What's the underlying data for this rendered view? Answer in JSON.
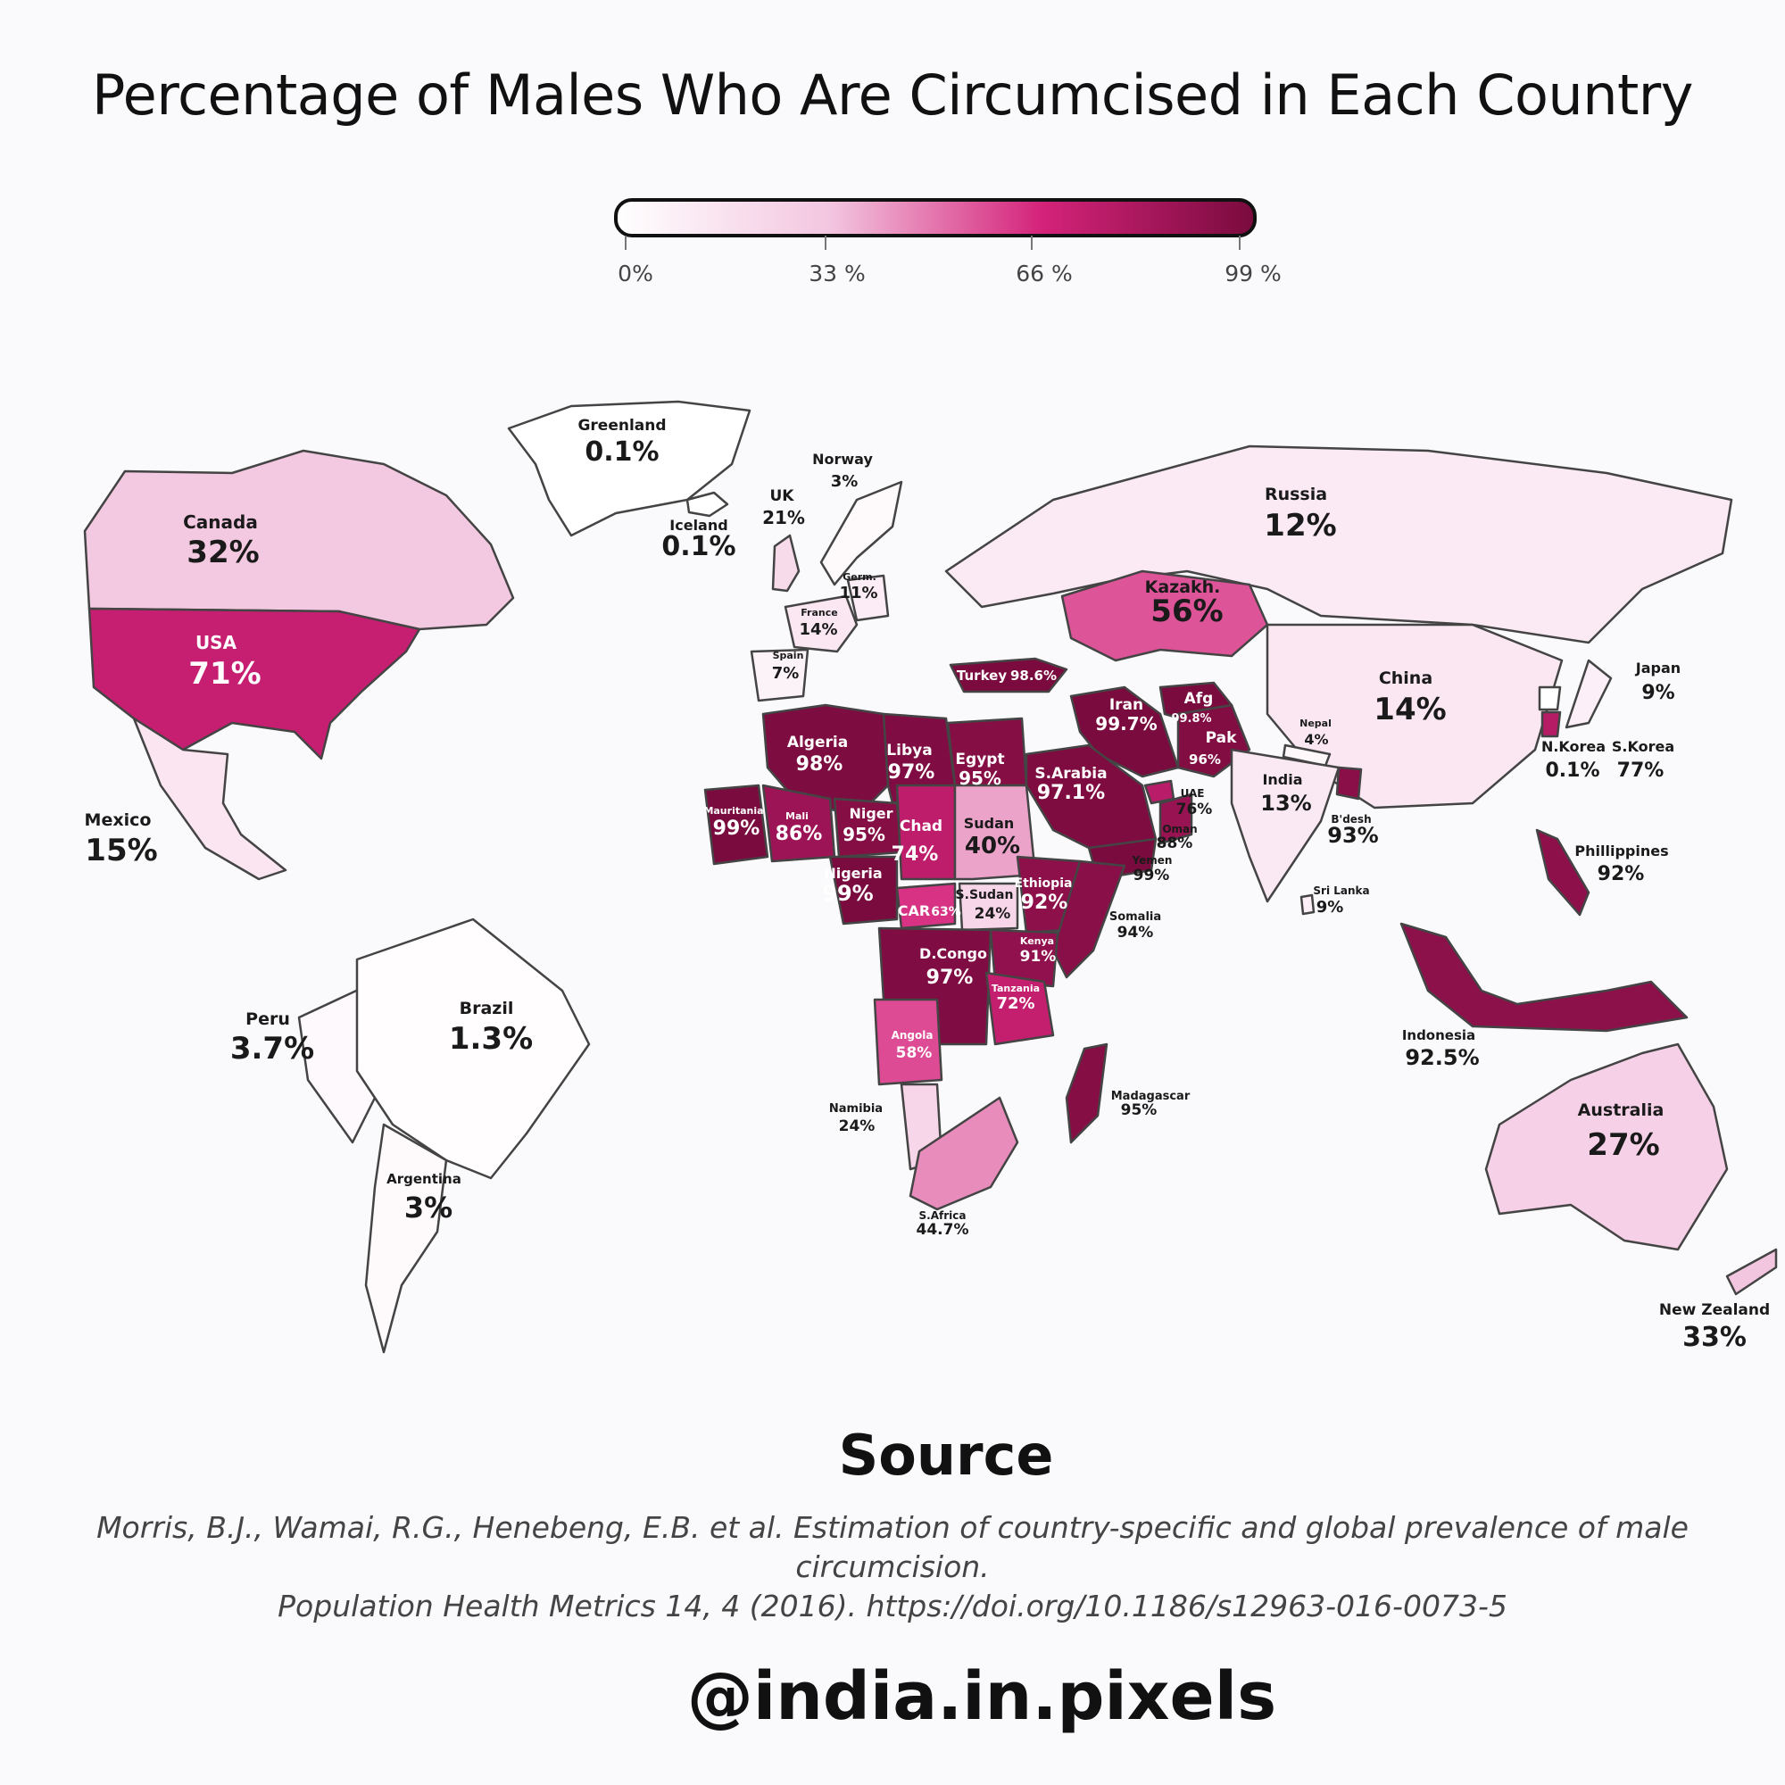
{
  "title": "Percentage of Males Who Are Circumcised in Each Country",
  "legend": {
    "colors": [
      "#ffffff",
      "#f3c6e0",
      "#d4237a",
      "#7a0b3e"
    ],
    "ticks": [
      {
        "value": 0,
        "label": "0%"
      },
      {
        "value": 33,
        "label": "33 %"
      },
      {
        "value": 66,
        "label": "66 %"
      },
      {
        "value": 99,
        "label": "99 %"
      }
    ]
  },
  "chart_data": {
    "type": "choropleth",
    "unit": "%",
    "regions": [
      {
        "name": "Canada",
        "value": 32,
        "label": "32%"
      },
      {
        "name": "USA",
        "value": 71,
        "label": "71%"
      },
      {
        "name": "Mexico",
        "value": 15,
        "label": "15%"
      },
      {
        "name": "Greenland",
        "value": 0.1,
        "label": "0.1%"
      },
      {
        "name": "Iceland",
        "value": 0.1,
        "label": "0.1%"
      },
      {
        "name": "UK",
        "value": 21,
        "label": "21%"
      },
      {
        "name": "Norway",
        "value": 3,
        "label": "3%"
      },
      {
        "name": "Germ.",
        "value": 11,
        "label": "11%"
      },
      {
        "name": "France",
        "value": 14,
        "label": "14%"
      },
      {
        "name": "Spain",
        "value": 7,
        "label": "7%"
      },
      {
        "name": "Russia",
        "value": 12,
        "label": "12%"
      },
      {
        "name": "Kazakh.",
        "value": 56,
        "label": "56%"
      },
      {
        "name": "Turkey",
        "value": 98.6,
        "label": "98.6%"
      },
      {
        "name": "Iran",
        "value": 99.7,
        "label": "99.7%"
      },
      {
        "name": "Afg",
        "value": 99.8,
        "label": "99.8%"
      },
      {
        "name": "Pak",
        "value": 96,
        "label": "96%"
      },
      {
        "name": "China",
        "value": 14,
        "label": "14%"
      },
      {
        "name": "Japan",
        "value": 9,
        "label": "9%"
      },
      {
        "name": "N.Korea",
        "value": 0.1,
        "label": "0.1%"
      },
      {
        "name": "S.Korea",
        "value": 77,
        "label": "77%"
      },
      {
        "name": "Nepal",
        "value": 4,
        "label": "4%"
      },
      {
        "name": "India",
        "value": 13,
        "label": "13%"
      },
      {
        "name": "B'desh",
        "value": 93,
        "label": "93%"
      },
      {
        "name": "Sri Lanka",
        "value": 9,
        "label": "9%"
      },
      {
        "name": "Phillippines",
        "value": 92,
        "label": "92%"
      },
      {
        "name": "Indonesia",
        "value": 92.5,
        "label": "92.5%"
      },
      {
        "name": "Australia",
        "value": 27,
        "label": "27%"
      },
      {
        "name": "New Zealand",
        "value": 33,
        "label": "33%"
      },
      {
        "name": "Algeria",
        "value": 98,
        "label": "98%"
      },
      {
        "name": "Libya",
        "value": 97,
        "label": "97%"
      },
      {
        "name": "Egypt",
        "value": 95,
        "label": "95%"
      },
      {
        "name": "S.Arabia",
        "value": 97.1,
        "label": "97.1%"
      },
      {
        "name": "UAE",
        "value": 76,
        "label": "76%"
      },
      {
        "name": "Oman",
        "value": 88,
        "label": "88%"
      },
      {
        "name": "Yemen",
        "value": 99,
        "label": "99%"
      },
      {
        "name": "Mauritania",
        "value": 99,
        "label": "99%"
      },
      {
        "name": "Mali",
        "value": 86,
        "label": "86%"
      },
      {
        "name": "Niger",
        "value": 95,
        "label": "95%"
      },
      {
        "name": "Chad",
        "value": 74,
        "label": "74%"
      },
      {
        "name": "Sudan",
        "value": 40,
        "label": "40%"
      },
      {
        "name": "Nigeria",
        "value": 99,
        "label": "99%"
      },
      {
        "name": "CAR",
        "value": 63,
        "label": "63%"
      },
      {
        "name": "S.Sudan",
        "value": 24,
        "label": "24%"
      },
      {
        "name": "Ethiopia",
        "value": 92,
        "label": "92%"
      },
      {
        "name": "Somalia",
        "value": 94,
        "label": "94%"
      },
      {
        "name": "Kenya",
        "value": 91,
        "label": "91%"
      },
      {
        "name": "D.Congo",
        "value": 97,
        "label": "97%"
      },
      {
        "name": "Tanzania",
        "value": 72,
        "label": "72%"
      },
      {
        "name": "Angola",
        "value": 58,
        "label": "58%"
      },
      {
        "name": "Namibia",
        "value": 24,
        "label": "24%"
      },
      {
        "name": "S.Africa",
        "value": 44.7,
        "label": "44.7%"
      },
      {
        "name": "Madagascar",
        "value": 95,
        "label": "95%"
      },
      {
        "name": "Peru",
        "value": 3.7,
        "label": "3.7%"
      },
      {
        "name": "Brazil",
        "value": 1.3,
        "label": "1.3%"
      },
      {
        "name": "Argentina",
        "value": 3,
        "label": "3%"
      }
    ]
  },
  "source": {
    "heading": "Source",
    "line1": "Morris, B.J., Wamai, R.G., Henebeng, E.B. et al. Estimation of country-specific and global prevalence of male circumcision.",
    "line2": "Population Health Metrics 14, 4 (2016). https://doi.org/10.1186/s12963-016-0073-5"
  },
  "handle": "@india.in.pixels"
}
